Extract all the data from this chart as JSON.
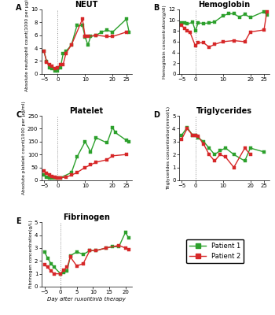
{
  "neut": {
    "title": "NEUT",
    "ylabel": "Absolute neutrophil count(1000 per μg/ml)",
    "p1_x": [
      -5,
      -4,
      -3,
      -2,
      -1,
      0,
      1,
      2,
      3,
      5,
      7,
      9,
      10,
      11,
      12,
      14,
      16,
      18,
      20,
      25,
      26
    ],
    "p1_y": [
      3.5,
      1.9,
      1.0,
      0.8,
      0.5,
      0.5,
      1.0,
      3.2,
      3.5,
      4.5,
      7.5,
      7.5,
      5.7,
      4.5,
      5.8,
      6.0,
      6.5,
      6.8,
      6.5,
      8.5,
      6.5
    ],
    "p2_x": [
      -5,
      -4,
      -3,
      -2,
      -1,
      0,
      1,
      2,
      3,
      5,
      9,
      10,
      11,
      14,
      18,
      20,
      25
    ],
    "p2_y": [
      3.5,
      1.8,
      1.5,
      1.2,
      0.8,
      0.9,
      1.5,
      1.5,
      3.2,
      4.5,
      8.5,
      5.8,
      5.8,
      6.0,
      5.8,
      5.8,
      6.5
    ],
    "ylim": [
      0,
      10
    ],
    "xlim": [
      -6,
      27
    ],
    "xticks": [
      -5,
      0,
      10,
      20,
      25
    ],
    "yticks": [
      0,
      2,
      4,
      6,
      8,
      10
    ]
  },
  "hemoglobin": {
    "title": "Hemoglobin",
    "ylabel": "Hemoglobin concentration(g/dl)",
    "p1_x": [
      -5,
      -4,
      -3,
      -1,
      0,
      1,
      3,
      5,
      7,
      10,
      12,
      14,
      16,
      18,
      20,
      25,
      26
    ],
    "p1_y": [
      9.5,
      9.5,
      9.3,
      9.6,
      8.0,
      9.5,
      9.4,
      9.5,
      9.7,
      10.8,
      11.2,
      11.2,
      10.6,
      11.1,
      10.5,
      11.6,
      11.0
    ],
    "p2_x": [
      -5,
      -4,
      -3,
      -2,
      0,
      1,
      3,
      5,
      7,
      10,
      14,
      18,
      20,
      25,
      26
    ],
    "p2_y": [
      9.0,
      8.5,
      8.0,
      7.8,
      5.2,
      5.8,
      5.8,
      5.0,
      5.5,
      6.0,
      6.2,
      6.0,
      7.8,
      8.2,
      11.5
    ],
    "ylim": [
      0,
      12
    ],
    "xlim": [
      -6,
      27
    ],
    "xticks": [
      -5,
      0,
      10,
      20,
      25
    ],
    "yticks": [
      0,
      2,
      4,
      6,
      8,
      10,
      12
    ]
  },
  "platelet": {
    "title": "Platelet",
    "ylabel": "Absolute platelet count(1000 per μg/ml)",
    "p1_x": [
      -5,
      -4,
      -3,
      -2,
      -1,
      0,
      1,
      5,
      7,
      10,
      12,
      14,
      18,
      20,
      21,
      25,
      26
    ],
    "p1_y": [
      20,
      12,
      10,
      8,
      8,
      8,
      10,
      30,
      90,
      150,
      110,
      165,
      145,
      205,
      185,
      155,
      150
    ],
    "p2_x": [
      -5,
      -4,
      -3,
      -2,
      -1,
      0,
      1,
      3,
      5,
      7,
      10,
      12,
      14,
      18,
      20,
      25
    ],
    "p2_y": [
      35,
      28,
      20,
      15,
      12,
      10,
      10,
      12,
      20,
      30,
      50,
      60,
      70,
      80,
      95,
      100
    ],
    "ylim": [
      0,
      250
    ],
    "xlim": [
      -6,
      27
    ],
    "xticks": [
      -5,
      0,
      10,
      20,
      25
    ],
    "yticks": [
      0,
      50,
      100,
      150,
      200,
      250
    ]
  },
  "triglycerides": {
    "title": "Triglycerides",
    "ylabel": "Triglycerides concentration(mmol/L)",
    "p1_x": [
      -5,
      -3,
      -1,
      0,
      1,
      3,
      5,
      7,
      9,
      11,
      14,
      18,
      20,
      25
    ],
    "p1_y": [
      3.5,
      4.1,
      3.5,
      3.5,
      3.3,
      3.0,
      2.5,
      2.0,
      2.3,
      2.5,
      2.0,
      1.5,
      2.5,
      2.2
    ],
    "p2_x": [
      -5,
      -3,
      -1,
      0,
      1,
      3,
      5,
      7,
      9,
      11,
      14,
      18,
      20
    ],
    "p2_y": [
      3.2,
      4.0,
      3.5,
      3.5,
      3.4,
      2.8,
      2.0,
      1.5,
      2.0,
      1.8,
      1.0,
      2.5,
      2.0
    ],
    "ylim": [
      0,
      5
    ],
    "xlim": [
      -6,
      27
    ],
    "xticks": [
      -5,
      0,
      10,
      20,
      25
    ],
    "yticks": [
      0,
      1,
      2,
      3,
      4,
      5
    ]
  },
  "fibrinogen": {
    "title": "Fibrinogen",
    "ylabel": "Fibrinogen concentration(g/L)",
    "p1_x": [
      -5,
      -4,
      -3,
      -2,
      0,
      1,
      2,
      3,
      5,
      7,
      9,
      11,
      14,
      16,
      18,
      20,
      21
    ],
    "p1_y": [
      2.7,
      2.2,
      1.8,
      1.5,
      1.0,
      1.1,
      1.2,
      2.4,
      2.7,
      2.5,
      2.8,
      2.8,
      3.0,
      3.1,
      3.1,
      4.2,
      3.8
    ],
    "p2_x": [
      -5,
      -4,
      -3,
      -2,
      0,
      1,
      2,
      3,
      5,
      7,
      9,
      11,
      14,
      18,
      20,
      21
    ],
    "p2_y": [
      1.7,
      1.5,
      1.2,
      1.0,
      1.0,
      1.3,
      1.5,
      2.3,
      1.6,
      1.8,
      2.8,
      2.8,
      3.0,
      3.2,
      3.0,
      2.9
    ],
    "ylim": [
      0,
      5
    ],
    "xlim": [
      -6,
      22
    ],
    "xticks": [
      -5,
      0,
      5,
      10,
      15,
      20
    ],
    "yticks": [
      0,
      1,
      2,
      3,
      4,
      5
    ]
  },
  "color_p1": "#2ca02c",
  "color_p2": "#d62728",
  "xlabel_bottom": "Day after ruxolitinib therapy",
  "legend_p1": "Patient 1",
  "legend_p2": "Patient 2",
  "marker": "s",
  "markersize": 3,
  "linewidth": 1.0
}
